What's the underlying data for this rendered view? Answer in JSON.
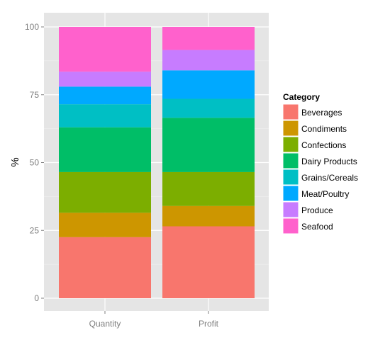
{
  "chart_data": {
    "type": "bar",
    "stacked": true,
    "categories": [
      "Quantity",
      "Profit"
    ],
    "ylabel": "%",
    "xlabel": "",
    "ylim": [
      0,
      100
    ],
    "yticks": [
      "0",
      "25",
      "50",
      "75",
      "100"
    ],
    "grid": true,
    "legend": {
      "title": "Category",
      "position": "right"
    },
    "series": [
      {
        "name": "Beverages",
        "color": "#F8766D",
        "values": [
          22.5,
          26.5
        ]
      },
      {
        "name": "Condiments",
        "color": "#CD9600",
        "values": [
          9.0,
          7.5
        ]
      },
      {
        "name": "Confections",
        "color": "#7CAE00",
        "values": [
          15.0,
          12.5
        ]
      },
      {
        "name": "Dairy Products",
        "color": "#00BE67",
        "values": [
          16.5,
          20.0
        ]
      },
      {
        "name": "Grains/Cereals",
        "color": "#00BFC4",
        "values": [
          8.5,
          7.0
        ]
      },
      {
        "name": "Meat/Poultry",
        "color": "#00A9FF",
        "values": [
          6.5,
          10.5
        ]
      },
      {
        "name": "Produce",
        "color": "#C77CFF",
        "values": [
          5.5,
          7.5
        ]
      },
      {
        "name": "Seafood",
        "color": "#FF61CC",
        "values": [
          16.5,
          8.5
        ]
      }
    ]
  }
}
